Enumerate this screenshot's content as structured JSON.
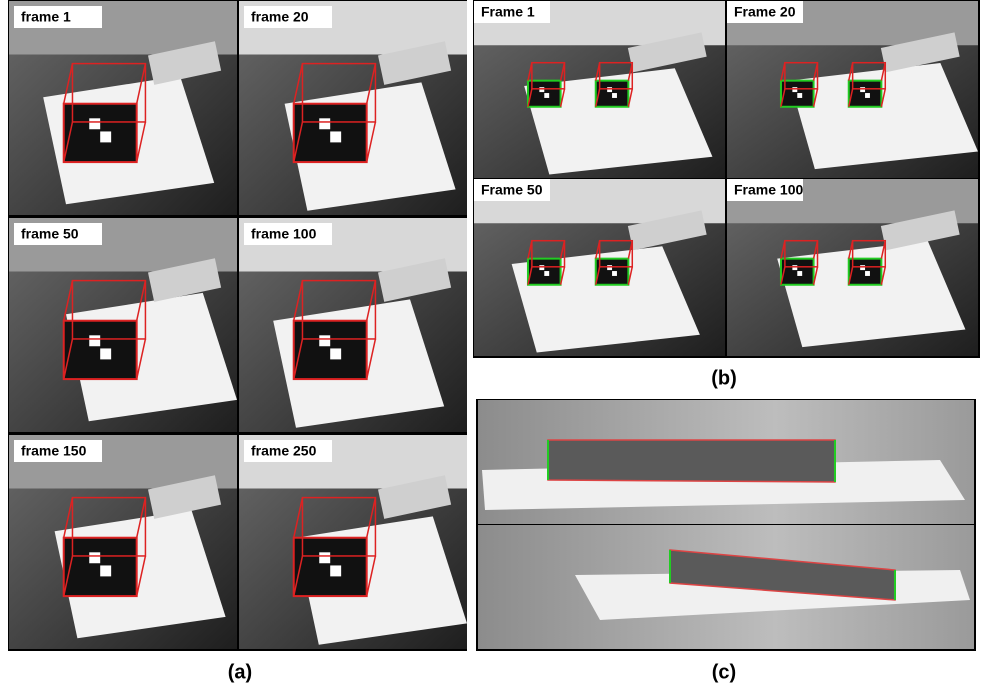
{
  "panels": [
    {
      "label": "(a)",
      "frames": [
        "frame 1",
        "frame 20",
        "frame 50",
        "frame 100",
        "frame 150",
        "frame 250"
      ]
    },
    {
      "label": "(b)",
      "frames": [
        "Frame 1",
        "Frame 20",
        "Frame 50",
        "Frame 100"
      ]
    },
    {
      "label": "(c)",
      "frames": []
    }
  ]
}
